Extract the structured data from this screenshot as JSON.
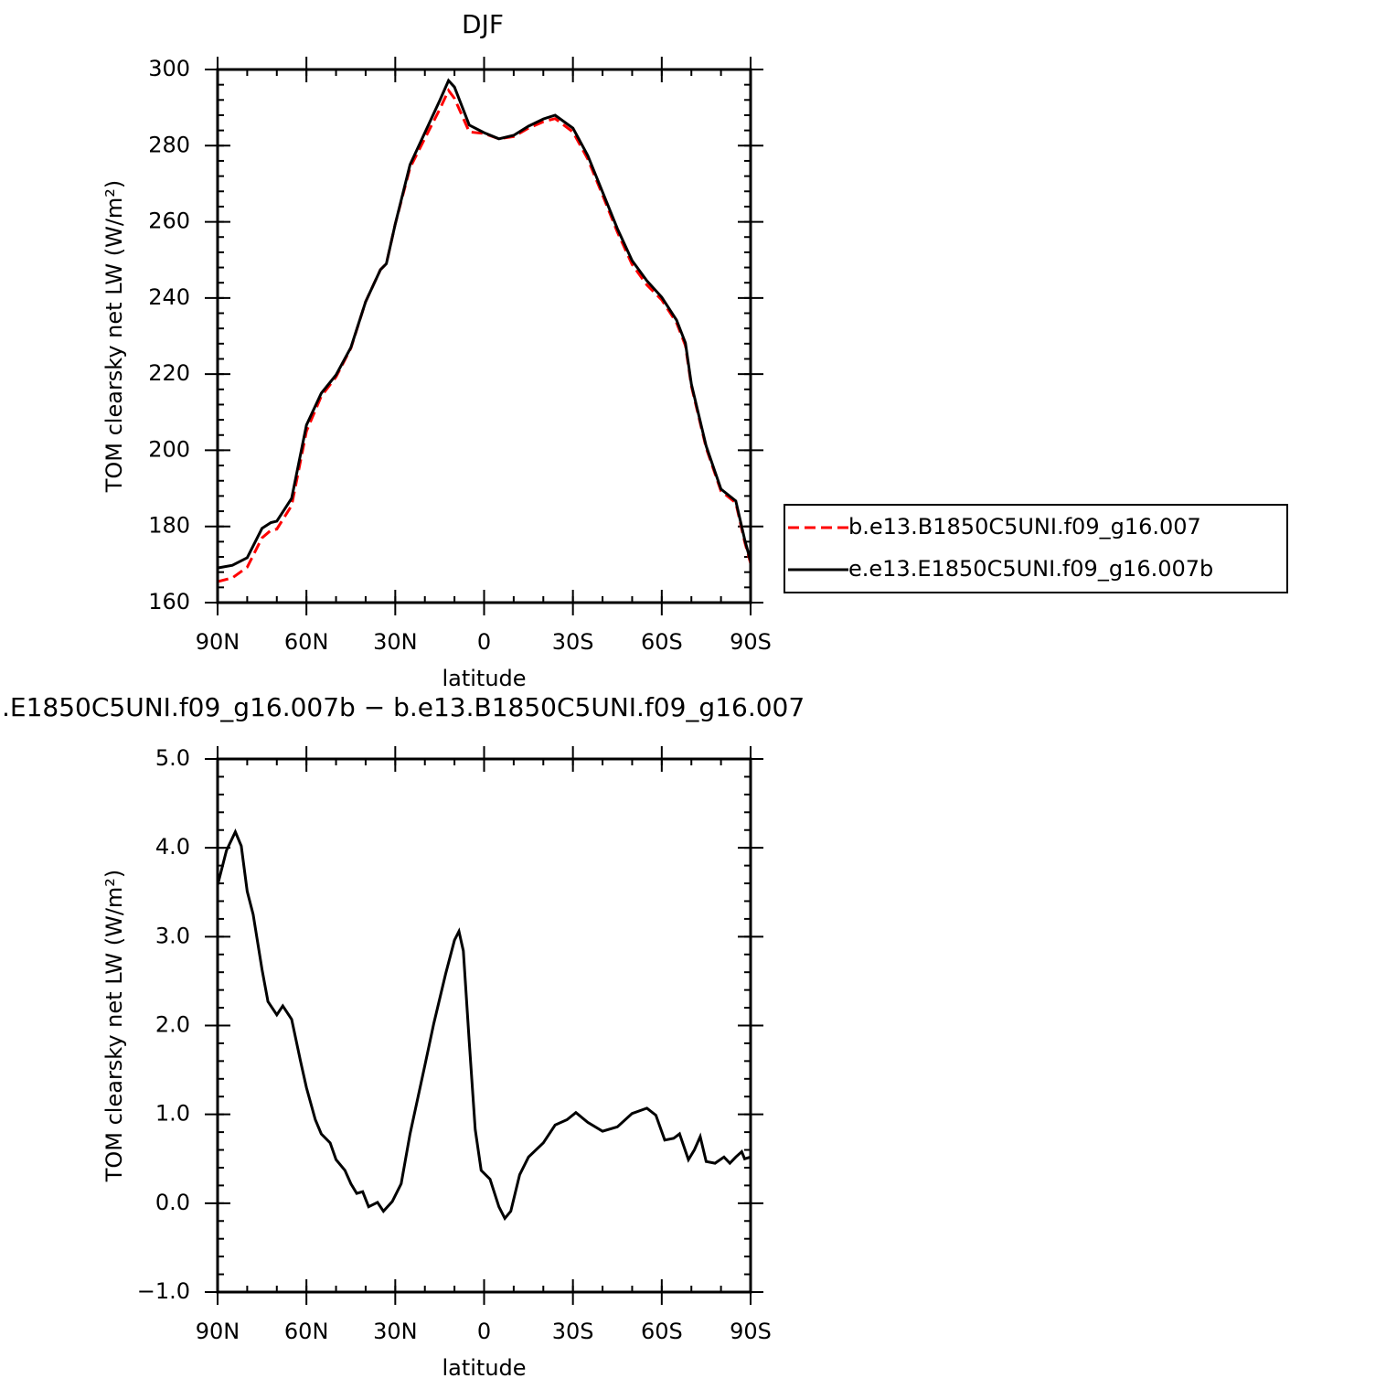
{
  "chart_data": [
    {
      "type": "line",
      "title": "DJF",
      "xlabel": "latitude",
      "ylabel": "TOM clearsky net LW (W/m²)",
      "x": [
        90,
        85,
        80,
        75,
        72,
        70,
        65,
        60,
        55,
        50,
        45,
        40,
        35,
        33,
        30,
        25,
        20,
        15,
        12,
        10,
        5,
        0,
        -5,
        -10,
        -15,
        -20,
        -24,
        -30,
        -35,
        -40,
        -45,
        -50,
        -55,
        -60,
        -65,
        -68,
        -70,
        -75,
        -80,
        -85,
        -88,
        -90
      ],
      "series": [
        {
          "name": "b.e13.B1850C5UNI.f09_g16.007",
          "color": "#ff0000",
          "style": "dashed",
          "values": [
            165.5,
            166.5,
            169.3,
            177,
            179,
            179.3,
            185.5,
            205,
            214.2,
            219.3,
            226.8,
            239,
            247.4,
            249,
            259.4,
            274.2,
            281.9,
            289.5,
            294.5,
            292.4,
            283.6,
            283.2,
            281.8,
            282.4,
            284.6,
            286.3,
            287.1,
            283.6,
            276.5,
            267,
            257.3,
            248.8,
            243.4,
            239.5,
            233.5,
            227.5,
            216.9,
            200.6,
            189.3,
            186.2,
            176,
            170.3
          ]
        },
        {
          "name": "e.e13.E1850C5UNI.f09_g16.007b",
          "color": "#000000",
          "style": "solid",
          "values": [
            169.1,
            169.8,
            171.8,
            179.5,
            181,
            181.4,
            187.4,
            206.6,
            215,
            219.8,
            227,
            239,
            247.4,
            249,
            259.4,
            275,
            283.4,
            291.8,
            297.1,
            295.4,
            285.4,
            283.4,
            281.8,
            282.7,
            285.1,
            287,
            288,
            284.6,
            277.4,
            267.8,
            258.2,
            249.8,
            244.5,
            240.2,
            234.2,
            228.2,
            217.4,
            201.1,
            189.8,
            186.7,
            176.6,
            170.8
          ]
        }
      ],
      "xlim": [
        90,
        -90
      ],
      "xticks": [
        {
          "value": 90,
          "label": "90N"
        },
        {
          "value": 60,
          "label": "60N"
        },
        {
          "value": 30,
          "label": "30N"
        },
        0,
        {
          "value": -30,
          "label": "30S"
        },
        {
          "value": -60,
          "label": "60S"
        },
        {
          "value": -90,
          "label": "90S"
        }
      ],
      "ylim": [
        160,
        300
      ],
      "yticks": [
        160,
        180,
        200,
        220,
        240,
        260,
        280,
        300
      ],
      "legend": "right"
    },
    {
      "type": "line",
      "title": ".E1850C5UNI.f09_g16.007b − b.e13.B1850C5UNI.f09_g16.007",
      "xlabel": "latitude",
      "ylabel": "TOM clearsky net LW (W/m²)",
      "x": [
        90,
        87,
        84,
        82,
        80,
        78,
        75,
        73,
        70,
        68,
        65,
        62,
        60,
        57,
        55,
        52,
        50,
        47,
        45,
        43,
        41,
        39,
        36,
        34,
        31,
        28,
        25,
        20,
        17,
        13,
        10,
        8.5,
        7,
        5,
        3,
        1,
        -2,
        -5,
        -7,
        -9,
        -12,
        -15,
        -20,
        -24,
        -28,
        -31,
        -35,
        -40,
        -45,
        -50,
        -55,
        -58,
        -61,
        -64,
        -66,
        -69,
        -71,
        -73,
        -75,
        -78,
        -81,
        -83,
        -85,
        -87,
        -88,
        -90
      ],
      "values": [
        3.58,
        3.97,
        4.18,
        4.02,
        3.51,
        3.25,
        2.63,
        2.27,
        2.12,
        2.22,
        2.07,
        1.6,
        1.3,
        0.94,
        0.78,
        0.68,
        0.49,
        0.37,
        0.22,
        0.11,
        0.13,
        -0.04,
        0.01,
        -0.09,
        0.02,
        0.22,
        0.78,
        1.55,
        2.02,
        2.58,
        2.96,
        3.06,
        2.84,
        1.81,
        0.83,
        0.37,
        0.27,
        -0.04,
        -0.17,
        -0.09,
        0.32,
        0.52,
        0.68,
        0.88,
        0.94,
        1.02,
        0.91,
        0.81,
        0.86,
        1.01,
        1.07,
        0.99,
        0.71,
        0.73,
        0.78,
        0.49,
        0.6,
        0.75,
        0.47,
        0.45,
        0.52,
        0.45,
        0.52,
        0.58,
        0.5,
        0.52
      ],
      "color": "#000000",
      "xlim": [
        90,
        -90
      ],
      "xticks": [
        {
          "value": 90,
          "label": "90N"
        },
        {
          "value": 60,
          "label": "60N"
        },
        {
          "value": 30,
          "label": "30N"
        },
        0,
        {
          "value": -30,
          "label": "30S"
        },
        {
          "value": -60,
          "label": "60S"
        },
        {
          "value": -90,
          "label": "90S"
        }
      ],
      "ylim": [
        -1,
        5
      ],
      "yticks": [
        {
          "value": -1,
          "label": "−1.0"
        },
        {
          "value": 0,
          "label": "0.0"
        },
        {
          "value": 1,
          "label": "1.0"
        },
        {
          "value": 2,
          "label": "2.0"
        },
        {
          "value": 3,
          "label": "3.0"
        },
        {
          "value": 4,
          "label": "4.0"
        },
        {
          "value": 5,
          "label": "5.0"
        }
      ]
    }
  ]
}
